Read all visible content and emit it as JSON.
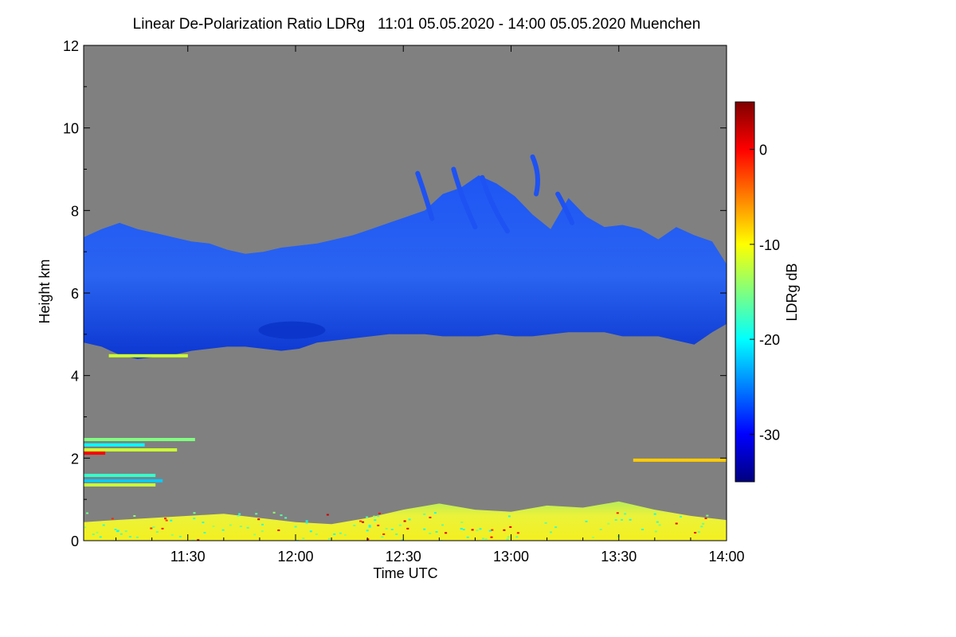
{
  "chart_data": {
    "type": "heatmap",
    "title": "Linear De-Polarization Ratio LDRg   11:01 05.05.2020 - 14:00 05.05.2020 Muenchen",
    "xlabel": "Time UTC",
    "ylabel": "Height km",
    "colorbar_label": "LDRg dB",
    "x_range_minutes_utc": [
      661,
      840
    ],
    "y_range_km": [
      0,
      12
    ],
    "x_ticks": [
      {
        "label": "11:30",
        "minutes": 690
      },
      {
        "label": "12:00",
        "minutes": 720
      },
      {
        "label": "12:30",
        "minutes": 750
      },
      {
        "label": "13:00",
        "minutes": 780
      },
      {
        "label": "13:30",
        "minutes": 810
      },
      {
        "label": "14:00",
        "minutes": 840
      }
    ],
    "y_ticks": [
      {
        "label": "0",
        "value": 0
      },
      {
        "label": "2",
        "value": 2
      },
      {
        "label": "4",
        "value": 4
      },
      {
        "label": "6",
        "value": 6
      },
      {
        "label": "8",
        "value": 8
      },
      {
        "label": "10",
        "value": 10
      },
      {
        "label": "12",
        "value": 12
      }
    ],
    "colorbar_range_db": [
      -35,
      5
    ],
    "colorbar_ticks": [
      {
        "label": "0",
        "value": 0
      },
      {
        "label": "-10",
        "value": -10
      },
      {
        "label": "-20",
        "value": -20
      },
      {
        "label": "-30",
        "value": -30
      }
    ],
    "background_color": "#808080",
    "layers": [
      {
        "name": "cirrus cloud layer",
        "ldr_db": -30,
        "color": "#1c4cf0",
        "core_color": "#0a34c8",
        "profile": [
          {
            "t": 661,
            "bottom": 4.8,
            "top": 7.35
          },
          {
            "t": 666,
            "bottom": 4.7,
            "top": 7.55
          },
          {
            "t": 671,
            "bottom": 4.5,
            "top": 7.7
          },
          {
            "t": 676,
            "bottom": 4.4,
            "top": 7.55
          },
          {
            "t": 681,
            "bottom": 4.45,
            "top": 7.45
          },
          {
            "t": 686,
            "bottom": 4.5,
            "top": 7.35
          },
          {
            "t": 691,
            "bottom": 4.6,
            "top": 7.25
          },
          {
            "t": 696,
            "bottom": 4.65,
            "top": 7.2
          },
          {
            "t": 701,
            "bottom": 4.7,
            "top": 7.05
          },
          {
            "t": 706,
            "bottom": 4.7,
            "top": 6.95
          },
          {
            "t": 711,
            "bottom": 4.65,
            "top": 7.0
          },
          {
            "t": 716,
            "bottom": 4.6,
            "top": 7.1
          },
          {
            "t": 721,
            "bottom": 4.65,
            "top": 7.15
          },
          {
            "t": 726,
            "bottom": 4.8,
            "top": 7.2
          },
          {
            "t": 731,
            "bottom": 4.85,
            "top": 7.3
          },
          {
            "t": 736,
            "bottom": 4.9,
            "top": 7.4
          },
          {
            "t": 741,
            "bottom": 4.95,
            "top": 7.55
          },
          {
            "t": 746,
            "bottom": 5.0,
            "top": 7.7
          },
          {
            "t": 751,
            "bottom": 5.0,
            "top": 7.85
          },
          {
            "t": 756,
            "bottom": 5.0,
            "top": 8.0
          },
          {
            "t": 761,
            "bottom": 4.95,
            "top": 8.4
          },
          {
            "t": 766,
            "bottom": 4.95,
            "top": 8.55
          },
          {
            "t": 771,
            "bottom": 4.95,
            "top": 8.85
          },
          {
            "t": 776,
            "bottom": 5.0,
            "top": 8.65
          },
          {
            "t": 781,
            "bottom": 4.95,
            "top": 8.35
          },
          {
            "t": 786,
            "bottom": 4.95,
            "top": 7.9
          },
          {
            "t": 791,
            "bottom": 5.0,
            "top": 7.55
          },
          {
            "t": 796,
            "bottom": 5.05,
            "top": 8.3
          },
          {
            "t": 801,
            "bottom": 5.05,
            "top": 7.85
          },
          {
            "t": 806,
            "bottom": 5.05,
            "top": 7.6
          },
          {
            "t": 811,
            "bottom": 4.95,
            "top": 7.65
          },
          {
            "t": 816,
            "bottom": 4.95,
            "top": 7.55
          },
          {
            "t": 821,
            "bottom": 4.95,
            "top": 7.3
          },
          {
            "t": 826,
            "bottom": 4.85,
            "top": 7.6
          },
          {
            "t": 831,
            "bottom": 4.75,
            "top": 7.4
          },
          {
            "t": 836,
            "bottom": 5.05,
            "top": 7.25
          },
          {
            "t": 840,
            "bottom": 5.25,
            "top": 6.7
          }
        ]
      },
      {
        "name": "boundary layer aerosol",
        "ldr_db": -10,
        "color": "#e8f23c",
        "profile": [
          {
            "t": 661,
            "top": 0.45
          },
          {
            "t": 670,
            "top": 0.5
          },
          {
            "t": 680,
            "top": 0.55
          },
          {
            "t": 690,
            "top": 0.6
          },
          {
            "t": 700,
            "top": 0.65
          },
          {
            "t": 710,
            "top": 0.55
          },
          {
            "t": 720,
            "top": 0.45
          },
          {
            "t": 730,
            "top": 0.4
          },
          {
            "t": 740,
            "top": 0.55
          },
          {
            "t": 750,
            "top": 0.75
          },
          {
            "t": 760,
            "top": 0.9
          },
          {
            "t": 770,
            "top": 0.75
          },
          {
            "t": 780,
            "top": 0.7
          },
          {
            "t": 790,
            "top": 0.85
          },
          {
            "t": 800,
            "top": 0.8
          },
          {
            "t": 810,
            "top": 0.95
          },
          {
            "t": 820,
            "top": 0.75
          },
          {
            "t": 830,
            "top": 0.6
          },
          {
            "t": 840,
            "top": 0.5
          }
        ]
      }
    ],
    "aerosol_streaks": [
      {
        "t0": 661,
        "t1": 692,
        "y": 2.45,
        "ldr_db": -15
      },
      {
        "t0": 661,
        "t1": 678,
        "y": 2.32,
        "ldr_db": -20
      },
      {
        "t0": 661,
        "t1": 687,
        "y": 2.2,
        "ldr_db": -12
      },
      {
        "t0": 661,
        "t1": 667,
        "y": 2.12,
        "ldr_db": 0
      },
      {
        "t0": 661,
        "t1": 681,
        "y": 1.58,
        "ldr_db": -18
      },
      {
        "t0": 661,
        "t1": 683,
        "y": 1.45,
        "ldr_db": -22
      },
      {
        "t0": 661,
        "t1": 681,
        "y": 1.35,
        "ldr_db": -12
      },
      {
        "t0": 668,
        "t1": 690,
        "y": 4.48,
        "ldr_db": -12
      },
      {
        "t0": 814,
        "t1": 840,
        "y": 1.95,
        "ldr_db": -8
      }
    ]
  }
}
